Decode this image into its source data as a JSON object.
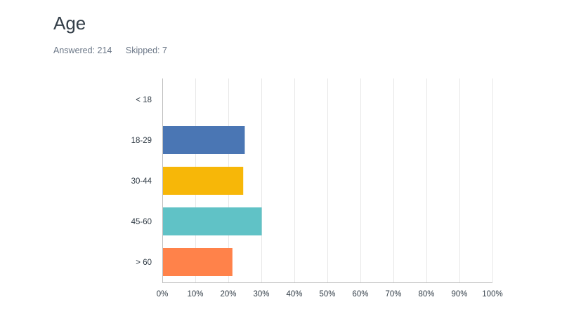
{
  "question": {
    "title": "Age",
    "answered_label": "Answered: 214",
    "skipped_label": "Skipped: 7"
  },
  "colors": {
    "grid": "#e8e8e8",
    "axis": "#bfbfbf",
    "label": "#333e48"
  },
  "chart_data": {
    "type": "bar",
    "orientation": "horizontal",
    "title": "Age",
    "categories": [
      "< 18",
      "18-29",
      "30-44",
      "45-60",
      "> 60"
    ],
    "values": [
      0,
      24.77,
      24.3,
      29.91,
      21.03
    ],
    "unit": "%",
    "xlim": [
      0,
      100
    ],
    "x_ticks": [
      "0%",
      "10%",
      "20%",
      "30%",
      "40%",
      "50%",
      "60%",
      "70%",
      "80%",
      "90%",
      "100%"
    ],
    "bar_colors": [
      "#4a76b4",
      "#4a76b4",
      "#f7b708",
      "#60c2c6",
      "#ff824a"
    ],
    "grid": true,
    "legend": "none"
  }
}
